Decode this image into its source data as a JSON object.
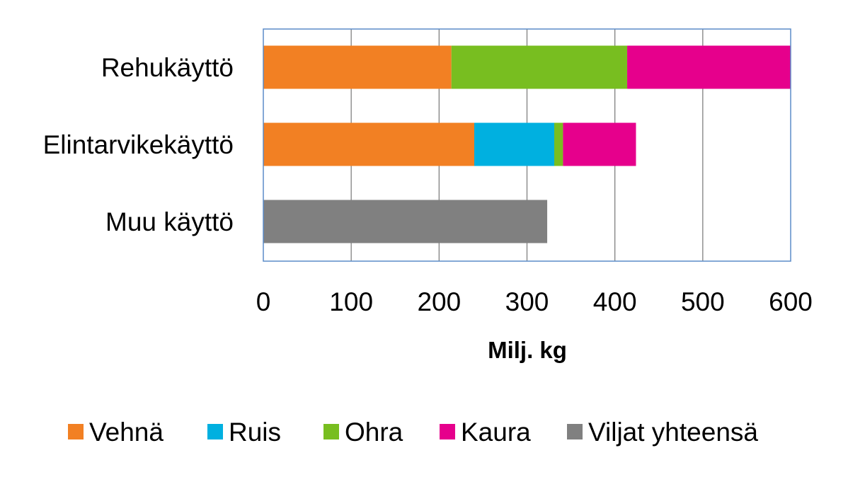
{
  "chart_data": {
    "type": "bar",
    "orientation": "horizontal",
    "stacked": true,
    "title": "",
    "xlabel": "Milj. kg",
    "ylabel": "",
    "xlim": [
      0,
      600
    ],
    "xticks": [
      "0",
      "100",
      "200",
      "300",
      "400",
      "500",
      "600"
    ],
    "grid": true,
    "legend_position": "bottom",
    "categories": [
      "Rehukäyttö",
      "Elintarvikekäyttö",
      "Muu käyttö"
    ],
    "series": [
      {
        "name": "Vehnä",
        "color": "#F28023",
        "values": [
          214,
          240,
          0
        ]
      },
      {
        "name": "Ruis",
        "color": "#00B0E0",
        "values": [
          0,
          91,
          0
        ]
      },
      {
        "name": "Ohra",
        "color": "#78BE20",
        "values": [
          200,
          10,
          0
        ]
      },
      {
        "name": "Kaura",
        "color": "#E6008C",
        "values": [
          186,
          83,
          0
        ]
      },
      {
        "name": "Viljat yhteensä",
        "color": "#808080",
        "values": [
          0,
          0,
          323
        ]
      }
    ],
    "colors": {
      "plot_border": "#5B8CC8",
      "grid": "#808080"
    }
  }
}
